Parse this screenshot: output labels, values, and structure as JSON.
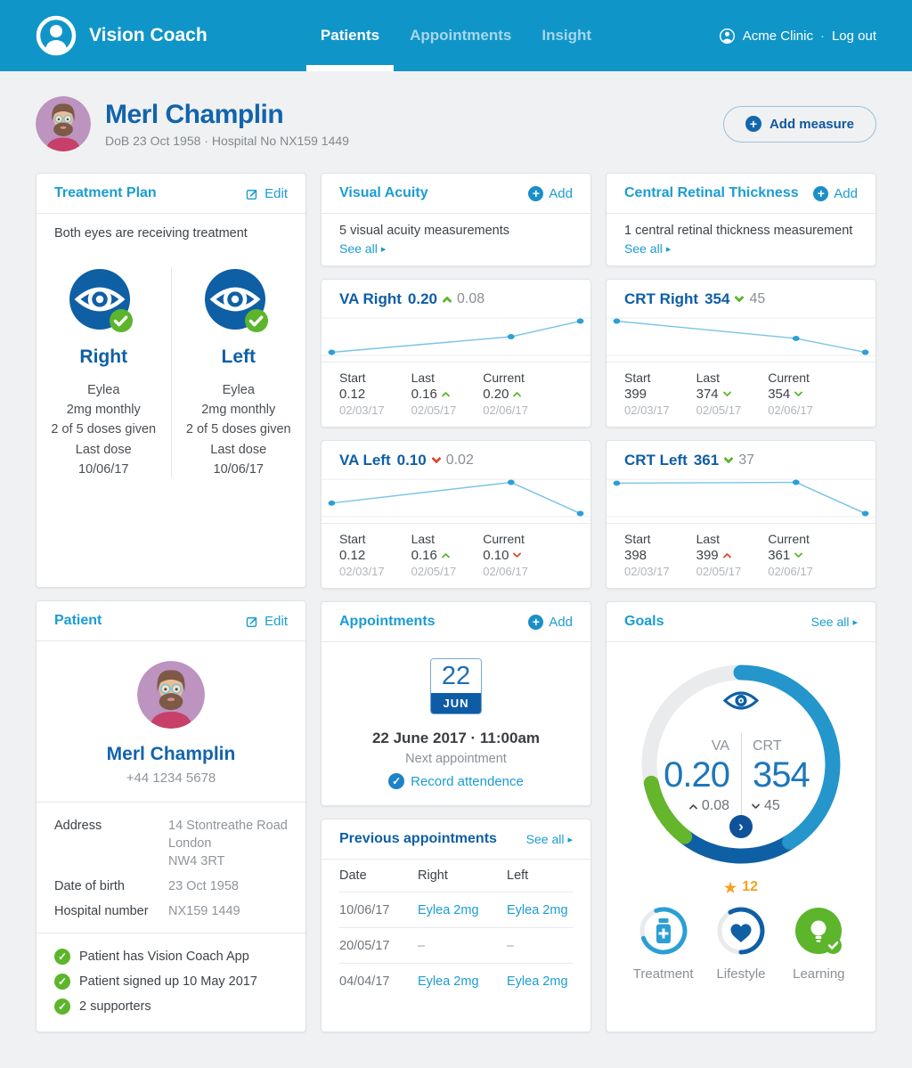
{
  "icons": {
    "add": "+",
    "see_all_arrow": "▸",
    "check": "✓",
    "star": "★",
    "chevron_right": "›",
    "separator": "·"
  },
  "colors": {
    "nav_blue": "#1095c8",
    "cyan": "#1b9cd3",
    "dark_blue": "#0f5fa5",
    "green": "#5cb52b",
    "red": "#e2452f",
    "orange": "#f5a11c"
  },
  "nav": {
    "brand": "Vision Coach",
    "tabs": [
      "Patients",
      "Appointments",
      "Insight"
    ],
    "clinic": "Acme Clinic",
    "logout": "Log out"
  },
  "header": {
    "name": "Merl Champlin",
    "meta": "DoB 23 Oct 1958  ·  Hospital No NX159 1449",
    "add_measure": "Add measure"
  },
  "treatment_plan": {
    "title": "Treatment Plan",
    "edit": "Edit",
    "summary": "Both eyes are receiving treatment",
    "eyes": [
      {
        "label": "Right",
        "drug": "Eylea",
        "dose": "2mg monthly",
        "doses_given": "2 of 5 doses given",
        "last_dose_label": "Last dose",
        "last_dose_date": "10/06/17"
      },
      {
        "label": "Left",
        "drug": "Eylea",
        "dose": "2mg monthly",
        "doses_given": "2 of 5 doses given",
        "last_dose_label": "Last dose",
        "last_dose_date": "10/06/17"
      }
    ]
  },
  "visual_acuity": {
    "title": "Visual Acuity",
    "add": "Add",
    "summary": "5 visual acuity measurements",
    "see_all": "See all",
    "charts": [
      {
        "title": "VA Right",
        "value": "0.20",
        "trend": "up",
        "delta": "0.08",
        "values": [
          0.12,
          0.16,
          0.2
        ],
        "dates": [
          "02/03/17",
          "02/05/17",
          "02/06/17"
        ],
        "stats": [
          {
            "label": "Start",
            "value": "0.12",
            "date": "02/03/17"
          },
          {
            "label": "Last",
            "value": "0.16",
            "arrow": "up",
            "date": "02/05/17"
          },
          {
            "label": "Current",
            "value": "0.20",
            "arrow": "up",
            "date": "02/06/17"
          }
        ]
      },
      {
        "title": "VA Left",
        "value": "0.10",
        "trend": "down",
        "delta": "0.02",
        "values": [
          0.12,
          0.16,
          0.1
        ],
        "dates": [
          "02/03/17",
          "02/05/17",
          "02/06/17"
        ],
        "stats": [
          {
            "label": "Start",
            "value": "0.12",
            "date": "02/03/17"
          },
          {
            "label": "Last",
            "value": "0.16",
            "arrow": "up",
            "date": "02/05/17"
          },
          {
            "label": "Current",
            "value": "0.10",
            "arrow": "down",
            "date": "02/06/17"
          }
        ]
      }
    ]
  },
  "crt": {
    "title": "Central Retinal Thickness",
    "add": "Add",
    "summary": "1 central retinal thickness measurement",
    "see_all": "See all",
    "charts": [
      {
        "title": "CRT Right",
        "value": "354",
        "trend": "down",
        "delta": "45",
        "values": [
          399,
          374,
          354
        ],
        "dates": [
          "02/03/17",
          "02/05/17",
          "02/06/17"
        ],
        "stats": [
          {
            "label": "Start",
            "value": "399",
            "date": "02/03/17"
          },
          {
            "label": "Last",
            "value": "374",
            "arrow": "down",
            "date": "02/05/17"
          },
          {
            "label": "Current",
            "value": "354",
            "arrow": "down",
            "date": "02/06/17"
          }
        ]
      },
      {
        "title": "CRT Left",
        "value": "361",
        "trend": "down",
        "delta": "37",
        "values": [
          398,
          399,
          361
        ],
        "dates": [
          "02/03/17",
          "02/05/17",
          "02/06/17"
        ],
        "stats": [
          {
            "label": "Start",
            "value": "398",
            "date": "02/03/17"
          },
          {
            "label": "Last",
            "value": "399",
            "arrow": "up",
            "date": "02/05/17"
          },
          {
            "label": "Current",
            "value": "361",
            "arrow": "down",
            "date": "02/06/17"
          }
        ]
      }
    ]
  },
  "patient": {
    "title": "Patient",
    "edit": "Edit",
    "name": "Merl Champlin",
    "phone": "+44 1234 5678",
    "address_label": "Address",
    "address_lines": [
      "14 Stontreathe Road",
      "London",
      "NW4 3RT"
    ],
    "dob_label": "Date of birth",
    "dob": "23 Oct 1958",
    "hospital_label": "Hospital number",
    "hospital": "NX159 1449",
    "checks": [
      "Patient has Vision Coach App",
      "Patient signed up 10 May 2017",
      "2 supporters"
    ]
  },
  "appointments": {
    "title": "Appointments",
    "add": "Add",
    "day": "22",
    "month": "JUN",
    "datetime": "22 June 2017 · 11:00am",
    "subtitle": "Next appointment",
    "action": "Record attendence"
  },
  "previous_appointments": {
    "title": "Previous appointments",
    "see_all": "See all",
    "columns": [
      "Date",
      "Right",
      "Left"
    ],
    "rows": [
      {
        "date": "10/06/17",
        "right": "Eylea 2mg",
        "left": "Eylea 2mg"
      },
      {
        "date": "20/05/17",
        "right": "–",
        "left": "–"
      },
      {
        "date": "04/04/17",
        "right": "Eylea 2mg",
        "left": "Eylea 2mg"
      }
    ]
  },
  "goals": {
    "title": "Goals",
    "see_all": "See all",
    "va_label": "VA",
    "va_value": "0.20",
    "va_delta": "0.08",
    "crt_label": "CRT",
    "crt_value": "354",
    "crt_delta": "45",
    "stars": "12",
    "items": [
      {
        "label": "Treatment"
      },
      {
        "label": "Lifestyle"
      },
      {
        "label": "Learning"
      }
    ]
  }
}
